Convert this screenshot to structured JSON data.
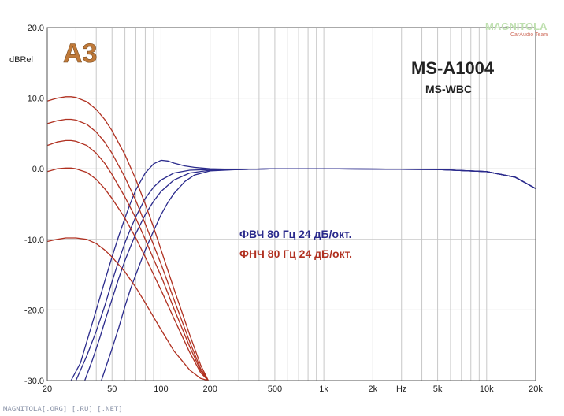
{
  "logo": {
    "text": "A3"
  },
  "brand": {
    "name": "MAGNITOLA",
    "team": "CarAudio Team"
  },
  "footer": {
    "text": "MAGNITOLA[.ORG] [.RU] [.NET]"
  },
  "colors": {
    "hpf": "#2a2a8c",
    "lpf": "#b03020",
    "grid": "#c8c8c8"
  },
  "chart_data": {
    "type": "line",
    "title": "MS-A1004",
    "subtitle": "MS-WBC",
    "ylabel": "dBRel",
    "xlabel": "Hz",
    "xscale": "log",
    "xlim": [
      20,
      20000
    ],
    "ylim": [
      -30,
      20
    ],
    "grid": true,
    "yticks": [
      {
        "v": 20,
        "label": "20.0"
      },
      {
        "v": 10,
        "label": "10.0"
      },
      {
        "v": 0,
        "label": "0.0"
      },
      {
        "v": -10,
        "label": "-10.0"
      },
      {
        "v": -20,
        "label": "-20.0"
      },
      {
        "v": -30,
        "label": "-30.0"
      }
    ],
    "xticks": [
      {
        "v": 20,
        "label": "20"
      },
      {
        "v": 50,
        "label": "50"
      },
      {
        "v": 100,
        "label": "100"
      },
      {
        "v": 200,
        "label": "200"
      },
      {
        "v": 500,
        "label": "500"
      },
      {
        "v": 1000,
        "label": "1k"
      },
      {
        "v": 2000,
        "label": "2k"
      },
      {
        "v": 3000,
        "label": "Hz"
      },
      {
        "v": 5000,
        "label": "5k"
      },
      {
        "v": 10000,
        "label": "10k"
      },
      {
        "v": 20000,
        "label": "20k"
      }
    ],
    "legend": [
      {
        "text": "ФВЧ 80 Гц 24 дБ/окт.",
        "color": "#2a2a8c"
      },
      {
        "text": "ФНЧ 80 Гц 24 дБ/окт.",
        "color": "#b03020"
      }
    ],
    "series": [
      {
        "group": "hpf",
        "x": [
          28,
          32,
          36,
          40,
          45,
          50,
          55,
          60,
          65,
          70,
          80,
          90,
          100,
          110,
          120,
          140,
          160,
          200,
          300,
          500,
          1000,
          5000,
          10000,
          15000,
          20000
        ],
        "y": [
          -30,
          -27.5,
          -23.5,
          -20,
          -16,
          -12.5,
          -9.5,
          -7,
          -4.8,
          -3,
          -0.6,
          0.7,
          1.2,
          1.1,
          0.8,
          0.4,
          0.2,
          0,
          -0.1,
          0,
          0,
          -0.1,
          -0.4,
          -1.2,
          -2.8
        ]
      },
      {
        "group": "hpf",
        "x": [
          30,
          35,
          40,
          45,
          50,
          55,
          60,
          65,
          70,
          80,
          90,
          100,
          120,
          150,
          200,
          300,
          500,
          1000,
          5000,
          10000,
          15000,
          20000
        ],
        "y": [
          -30,
          -26.5,
          -23,
          -19.5,
          -16,
          -13,
          -10.5,
          -8.5,
          -6.8,
          -4.2,
          -2.6,
          -1.6,
          -0.6,
          -0.2,
          -0.1,
          -0.1,
          0,
          0,
          -0.1,
          -0.4,
          -1.2,
          -2.8
        ]
      },
      {
        "group": "hpf",
        "x": [
          34,
          38,
          42,
          46,
          50,
          55,
          60,
          65,
          70,
          80,
          90,
          100,
          120,
          150,
          200,
          300,
          500,
          1000,
          5000,
          10000,
          15000,
          20000
        ],
        "y": [
          -30,
          -27,
          -24,
          -21,
          -18.5,
          -15.5,
          -13,
          -11,
          -9.2,
          -6.5,
          -4.6,
          -3.2,
          -1.6,
          -0.6,
          -0.2,
          -0.1,
          0,
          0,
          -0.1,
          -0.4,
          -1.2,
          -2.8
        ]
      },
      {
        "group": "hpf",
        "x": [
          43,
          50,
          55,
          60,
          65,
          70,
          80,
          90,
          100,
          110,
          120,
          140,
          160,
          200,
          300,
          500,
          1000,
          5000,
          10000,
          15000,
          20000
        ],
        "y": [
          -30,
          -25.5,
          -22.5,
          -19.5,
          -17,
          -15,
          -11.5,
          -8.8,
          -6.5,
          -4.8,
          -3.5,
          -1.8,
          -0.9,
          -0.3,
          -0.1,
          0,
          0,
          -0.1,
          -0.4,
          -1.2,
          -2.8
        ]
      },
      {
        "group": "lpf",
        "x": [
          20,
          23,
          26,
          28,
          30,
          35,
          40,
          45,
          50,
          60,
          70,
          80,
          90,
          100,
          120,
          150,
          175,
          195
        ],
        "y": [
          9.6,
          10,
          10.2,
          10.2,
          10.1,
          9.5,
          8.4,
          7,
          5.4,
          2,
          -1.5,
          -5,
          -8.3,
          -11.5,
          -17,
          -23.5,
          -27.8,
          -30
        ]
      },
      {
        "group": "lpf",
        "x": [
          20,
          23,
          26,
          28,
          30,
          35,
          40,
          45,
          50,
          60,
          70,
          80,
          90,
          100,
          120,
          150,
          175,
          195
        ],
        "y": [
          6.4,
          6.8,
          7,
          7,
          6.9,
          6.3,
          5.2,
          3.8,
          2.2,
          -1.2,
          -4.5,
          -7.8,
          -10.8,
          -13.5,
          -18.5,
          -24.5,
          -28.3,
          -30
        ]
      },
      {
        "group": "lpf",
        "x": [
          20,
          23,
          26,
          28,
          30,
          35,
          40,
          45,
          50,
          60,
          70,
          80,
          90,
          100,
          120,
          150,
          175,
          195
        ],
        "y": [
          3.3,
          3.8,
          4,
          4,
          3.9,
          3.3,
          2.2,
          0.8,
          -0.8,
          -4,
          -7,
          -10,
          -12.8,
          -15.2,
          -19.8,
          -25.2,
          -28.6,
          -30
        ]
      },
      {
        "group": "lpf",
        "x": [
          20,
          23,
          26,
          28,
          30,
          35,
          40,
          45,
          50,
          60,
          70,
          80,
          90,
          100,
          120,
          150,
          175,
          195
        ],
        "y": [
          -0.4,
          0,
          0.1,
          0.1,
          0,
          -0.5,
          -1.5,
          -2.8,
          -4.2,
          -7,
          -9.8,
          -12.5,
          -15,
          -17.2,
          -21.2,
          -26,
          -28.9,
          -30
        ]
      },
      {
        "group": "lpf",
        "x": [
          20,
          23,
          26,
          28,
          30,
          35,
          40,
          45,
          50,
          60,
          70,
          80,
          90,
          100,
          120,
          150,
          175,
          195
        ],
        "y": [
          -10.3,
          -10,
          -9.8,
          -9.8,
          -9.8,
          -10,
          -10.6,
          -11.5,
          -12.5,
          -14.6,
          -16.8,
          -19,
          -21,
          -22.8,
          -25.8,
          -28.5,
          -29.7,
          -30
        ]
      }
    ]
  }
}
